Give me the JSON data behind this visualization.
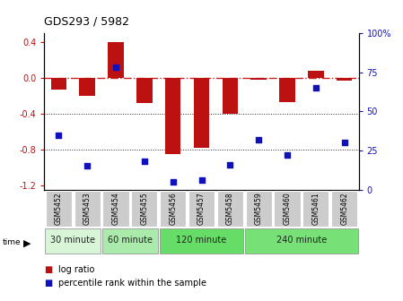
{
  "title": "GDS293 / 5982",
  "samples": [
    "GSM5452",
    "GSM5453",
    "GSM5454",
    "GSM5455",
    "GSM5456",
    "GSM5457",
    "GSM5458",
    "GSM5459",
    "GSM5460",
    "GSM5461",
    "GSM5462"
  ],
  "log_ratio": [
    -0.13,
    -0.2,
    0.4,
    -0.28,
    -0.85,
    -0.78,
    -0.4,
    -0.02,
    -0.27,
    0.08,
    -0.03
  ],
  "percentile": [
    35,
    15,
    78,
    18,
    5,
    6,
    16,
    32,
    22,
    65,
    30
  ],
  "groups": [
    {
      "label": "30 minute",
      "start": 0,
      "end": 2,
      "color": "#d8f5d8"
    },
    {
      "label": "60 minute",
      "start": 2,
      "end": 4,
      "color": "#aaeaaa"
    },
    {
      "label": "120 minute",
      "start": 4,
      "end": 7,
      "color": "#66dd66"
    },
    {
      "label": "240 minute",
      "start": 7,
      "end": 11,
      "color": "#77e077"
    }
  ],
  "bar_color": "#bb1111",
  "dot_color": "#1111bb",
  "ref_line_color": "#cc2222",
  "grid_color": "#222222",
  "ylim_left": [
    -1.25,
    0.5
  ],
  "ylim_right": [
    0,
    100
  ],
  "yticks_left": [
    -1.2,
    -0.8,
    -0.4,
    0.0,
    0.4
  ],
  "yticks_right": [
    0,
    25,
    50,
    75,
    100
  ],
  "bg_color": "#ffffff",
  "sample_box_color": "#cccccc",
  "group_border_color": "#888888"
}
